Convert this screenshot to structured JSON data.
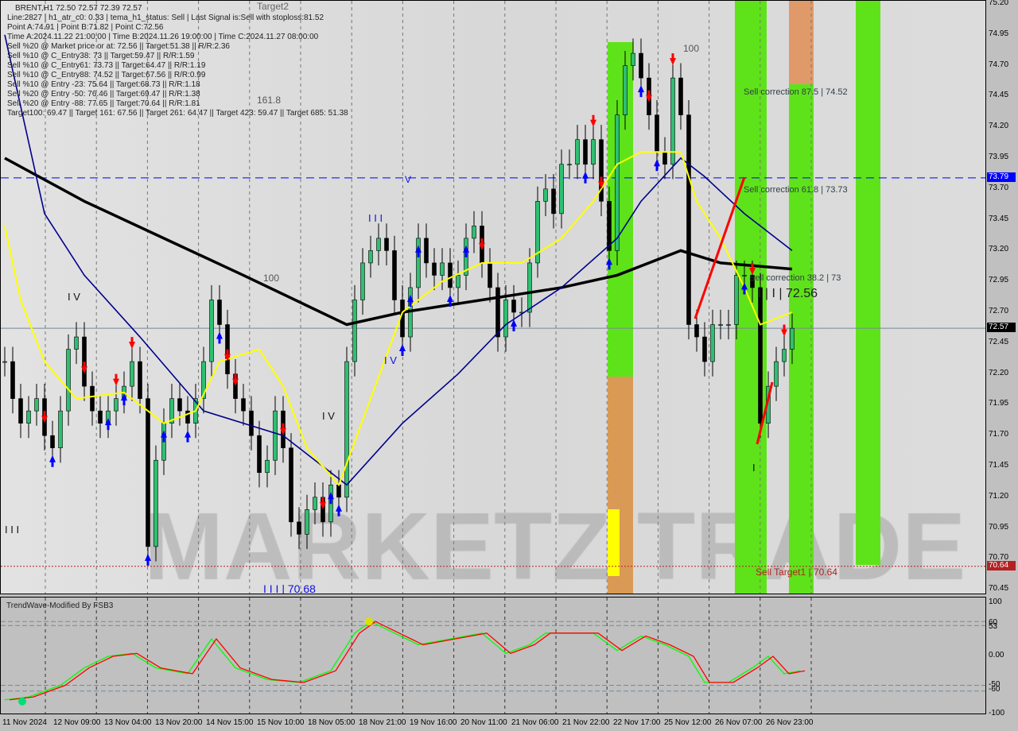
{
  "header": {
    "symbol_line": "BRENT,H1  72.50 72.57 72.39 72.57",
    "lines": [
      "Line:2827 | h1_atr_c0: 0.33 | tema_h1_status: Sell | Last Signal is:Sell with stoploss:81.52",
      "Point A:74.91 | Point B:71.82 | Point C:72.56",
      "Time A:2024.11.22 21:00:00 | Time B:2024.11.26 19:00:00 | Time C:2024.11.27 08:00:00",
      "Sell %20 @ Market price or at: 72.56 || Target:51.38 || R/R:2.36",
      "Sell %10 @ C_Entry38: 73 || Target:59.47 || R/R:1.59",
      "Sell %10 @ C_Entry61: 73.73 || Target:64.47 || R/R:1.19",
      "Sell %10 @ C_Entry88: 74.52 || Target:67.56 || R/R:0.99",
      "Sell %10 @ Entry -23: 75.64 || Target:68.73 || R/R:1.18",
      "Sell %20 @ Entry -50: 76.46 || Target:69.47 || R/R:1.38",
      "Sell %20 @ Entry -88: 77.65 || Target:70.64 || R/R:1.81",
      "Target100: 69.47 || Target 161: 67.56 || Target 261: 64.47 || Target 423: 59.47 || Target 685: 51.38"
    ]
  },
  "annotations": {
    "fib_1618": "161.8",
    "fib_100_a": "100",
    "fib_100_b": "100",
    "target_top": "Target2",
    "sell_corr_875": "Sell correction 87.5 | 74.52",
    "sell_corr_618": "Sell correction 61.8 | 73.73",
    "sell_corr_382": "Sell correction 38.2 | 73",
    "point_c": "I | I | 72.56",
    "wave_low": "I I I | 70.68",
    "sell_target": "Sell Target1 | 70.64",
    "w_iii_a": "I I I",
    "w_iv_a": "I V",
    "w_iv_b": "I V",
    "w_iv_c": "I V",
    "w_iii_b": "I I I",
    "w_v": "V",
    "w_i": "I",
    "watermark": "MARKETZITRADE"
  },
  "indicator": {
    "title": "TrendWave-Modified By FSB3"
  },
  "colors": {
    "bull": "#2fbf71",
    "bear": "#000000",
    "ma_slow": "#000000",
    "ma_fast": "#00008b",
    "signal_line": "#ffff00",
    "green_zone": "#5ee31a",
    "orange_zone": "#d99a55",
    "current_price": "#000000",
    "level_blue": "#0000ff",
    "target_red": "#b22222",
    "osc_green": "#00ff00",
    "osc_red": "#ff0000"
  },
  "chart_data": {
    "type": "candlestick",
    "symbol": "BRENT",
    "timeframe": "H1",
    "ylim": [
      70.45,
      75.2
    ],
    "y_ticks": [
      "75.20",
      "74.95",
      "74.70",
      "74.45",
      "74.20",
      "73.95",
      "73.70",
      "73.45",
      "73.20",
      "72.95",
      "72.70",
      "72.45",
      "72.20",
      "71.95",
      "71.70",
      "71.45",
      "71.20",
      "70.95",
      "70.70",
      "70.45"
    ],
    "x_ticks": [
      "11 Nov 2024",
      "12 Nov 09:00",
      "13 Nov 04:00",
      "13 Nov 20:00",
      "14 Nov 15:00",
      "15 Nov 10:00",
      "18 Nov 05:00",
      "18 Nov 21:00",
      "19 Nov 16:00",
      "20 Nov 11:00",
      "21 Nov 06:00",
      "21 Nov 22:00",
      "22 Nov 17:00",
      "25 Nov 12:00",
      "26 Nov 07:00",
      "26 Nov 23:00"
    ],
    "close": [
      72.3,
      72.0,
      71.8,
      71.9,
      72.0,
      71.7,
      71.6,
      71.9,
      72.4,
      72.5,
      72.1,
      71.9,
      71.8,
      71.9,
      72.0,
      72.1,
      72.3,
      72.0,
      70.8,
      71.5,
      71.8,
      72.0,
      71.9,
      71.8,
      72.0,
      72.3,
      72.8,
      72.6,
      72.2,
      72.0,
      71.9,
      71.7,
      71.4,
      71.5,
      71.9,
      71.6,
      71.0,
      70.9,
      71.1,
      71.2,
      71.0,
      71.3,
      71.2,
      72.3,
      72.8,
      73.1,
      73.2,
      73.3,
      73.2,
      72.8,
      72.5,
      72.9,
      73.3,
      73.1,
      73.0,
      73.1,
      72.9,
      73.0,
      73.3,
      73.4,
      73.1,
      72.9,
      72.5,
      72.8,
      72.7,
      72.7,
      73.1,
      73.6,
      73.7,
      73.5,
      73.9,
      73.9,
      74.1,
      73.9,
      74.1,
      73.6,
      73.2,
      74.3,
      74.7,
      74.8,
      74.6,
      74.3,
      74.0,
      73.9,
      74.6,
      74.3,
      72.6,
      72.5,
      72.3,
      72.6,
      72.6,
      72.6,
      73.0,
      73.0,
      72.9,
      71.8,
      72.1,
      72.3,
      72.4,
      72.57
    ],
    "ma_slow": [
      [
        0,
        73.95
      ],
      [
        10,
        73.6
      ],
      [
        20,
        73.3
      ],
      [
        30,
        73.0
      ],
      [
        43,
        72.6
      ],
      [
        50,
        72.7
      ],
      [
        60,
        72.8
      ],
      [
        70,
        72.9
      ],
      [
        77,
        73.0
      ],
      [
        85,
        73.2
      ],
      [
        90,
        73.1
      ],
      [
        99,
        73.05
      ]
    ],
    "ma_fast": [
      [
        0,
        74.95
      ],
      [
        5,
        73.5
      ],
      [
        10,
        73.0
      ],
      [
        17,
        72.5
      ],
      [
        25,
        71.9
      ],
      [
        35,
        71.7
      ],
      [
        43,
        71.3
      ],
      [
        50,
        71.8
      ],
      [
        57,
        72.2
      ],
      [
        63,
        72.6
      ],
      [
        70,
        72.9
      ],
      [
        77,
        73.3
      ],
      [
        80,
        73.6
      ],
      [
        85,
        73.95
      ],
      [
        88,
        73.8
      ],
      [
        93,
        73.5
      ],
      [
        99,
        73.2
      ]
    ],
    "signal_line": [
      [
        0,
        73.4
      ],
      [
        2,
        72.8
      ],
      [
        5,
        72.3
      ],
      [
        9,
        72.0
      ],
      [
        15,
        72.05
      ],
      [
        20,
        71.8
      ],
      [
        24,
        71.9
      ],
      [
        27,
        72.3
      ],
      [
        32,
        72.4
      ],
      [
        35,
        72.1
      ],
      [
        38,
        71.6
      ],
      [
        42,
        71.3
      ],
      [
        46,
        72.0
      ],
      [
        50,
        72.7
      ],
      [
        55,
        72.95
      ],
      [
        60,
        73.1
      ],
      [
        65,
        73.1
      ],
      [
        70,
        73.3
      ],
      [
        74,
        73.6
      ],
      [
        77,
        73.9
      ],
      [
        80,
        74.0
      ],
      [
        85,
        74.0
      ],
      [
        87,
        73.6
      ],
      [
        90,
        73.3
      ],
      [
        93,
        72.9
      ],
      [
        95,
        72.6
      ],
      [
        99,
        72.7
      ]
    ],
    "sell_signals": [
      5,
      10,
      14,
      16,
      28,
      29,
      35,
      40,
      60,
      74,
      75,
      81,
      84,
      94,
      98
    ],
    "buy_signals": [
      6,
      13,
      15,
      18,
      20,
      23,
      27,
      41,
      42,
      50,
      51,
      52,
      56,
      58,
      64,
      73,
      76,
      80,
      82,
      93
    ],
    "levels": {
      "current": 72.57,
      "entry_level": 73.79,
      "sell_target": 70.64
    },
    "oscillator": {
      "title": "TrendWave-Modified By FSB3",
      "ylim": [
        -100,
        100
      ],
      "y_ticks": [
        "100",
        "60",
        "53",
        "0.00",
        "-50",
        "-60",
        "-100"
      ],
      "values": [
        [
          0,
          -75
        ],
        [
          3,
          -70
        ],
        [
          7,
          -50
        ],
        [
          10,
          -20
        ],
        [
          13,
          0
        ],
        [
          16,
          5
        ],
        [
          19,
          -20
        ],
        [
          23,
          -30
        ],
        [
          26,
          30
        ],
        [
          29,
          -20
        ],
        [
          33,
          -40
        ],
        [
          37,
          -45
        ],
        [
          41,
          -25
        ],
        [
          44,
          40
        ],
        [
          46,
          60
        ],
        [
          49,
          40
        ],
        [
          52,
          20
        ],
        [
          56,
          30
        ],
        [
          60,
          40
        ],
        [
          63,
          5
        ],
        [
          66,
          20
        ],
        [
          68,
          40
        ],
        [
          71,
          40
        ],
        [
          74,
          40
        ],
        [
          77,
          10
        ],
        [
          80,
          35
        ],
        [
          83,
          20
        ],
        [
          86,
          0
        ],
        [
          88,
          -45
        ],
        [
          91,
          -45
        ],
        [
          94,
          -20
        ],
        [
          96,
          0
        ],
        [
          98,
          -30
        ],
        [
          100,
          -25
        ]
      ]
    }
  }
}
